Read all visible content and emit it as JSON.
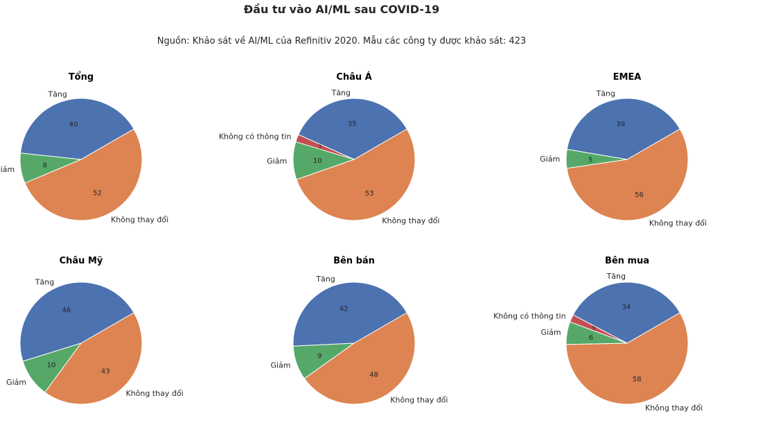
{
  "figure": {
    "title": "Đầu tư vào AI/ML sau COVID-19",
    "subtitle": "Nguồn: Khảo sát về AI/ML của Refinitiv 2020. Mẫu các công ty được khảo sát: 423"
  },
  "colors": {
    "Tăng": "#4c72b0",
    "Không có thông tin": "#c44e52",
    "Giảm": "#55a868",
    "Không thay đổi": "#dd8452"
  },
  "chart_data": [
    {
      "type": "pie",
      "title": "Tổng",
      "labels": [
        "Tăng",
        "Giảm",
        "Không thay đổi"
      ],
      "values": [
        40,
        8,
        52
      ]
    },
    {
      "type": "pie",
      "title": "Châu Á",
      "labels": [
        "Tăng",
        "Không có thông tin",
        "Giảm",
        "Không thay đổi"
      ],
      "values": [
        35,
        2,
        10,
        53
      ]
    },
    {
      "type": "pie",
      "title": "EMEA",
      "labels": [
        "Tăng",
        "Giảm",
        "Không thay đổi"
      ],
      "values": [
        39,
        5,
        56
      ]
    },
    {
      "type": "pie",
      "title": "Châu Mỹ",
      "labels": [
        "Tăng",
        "Giảm",
        "Không thay đổi"
      ],
      "values": [
        46,
        10,
        43
      ]
    },
    {
      "type": "pie",
      "title": "Bên bán",
      "labels": [
        "Tăng",
        "Giảm",
        "Không thay đổi"
      ],
      "values": [
        42,
        9,
        48
      ]
    },
    {
      "type": "pie",
      "title": "Bên mua",
      "labels": [
        "Tăng",
        "Không có thông tin",
        "Giảm",
        "Không thay đổi"
      ],
      "values": [
        34,
        2,
        6,
        58
      ]
    }
  ]
}
